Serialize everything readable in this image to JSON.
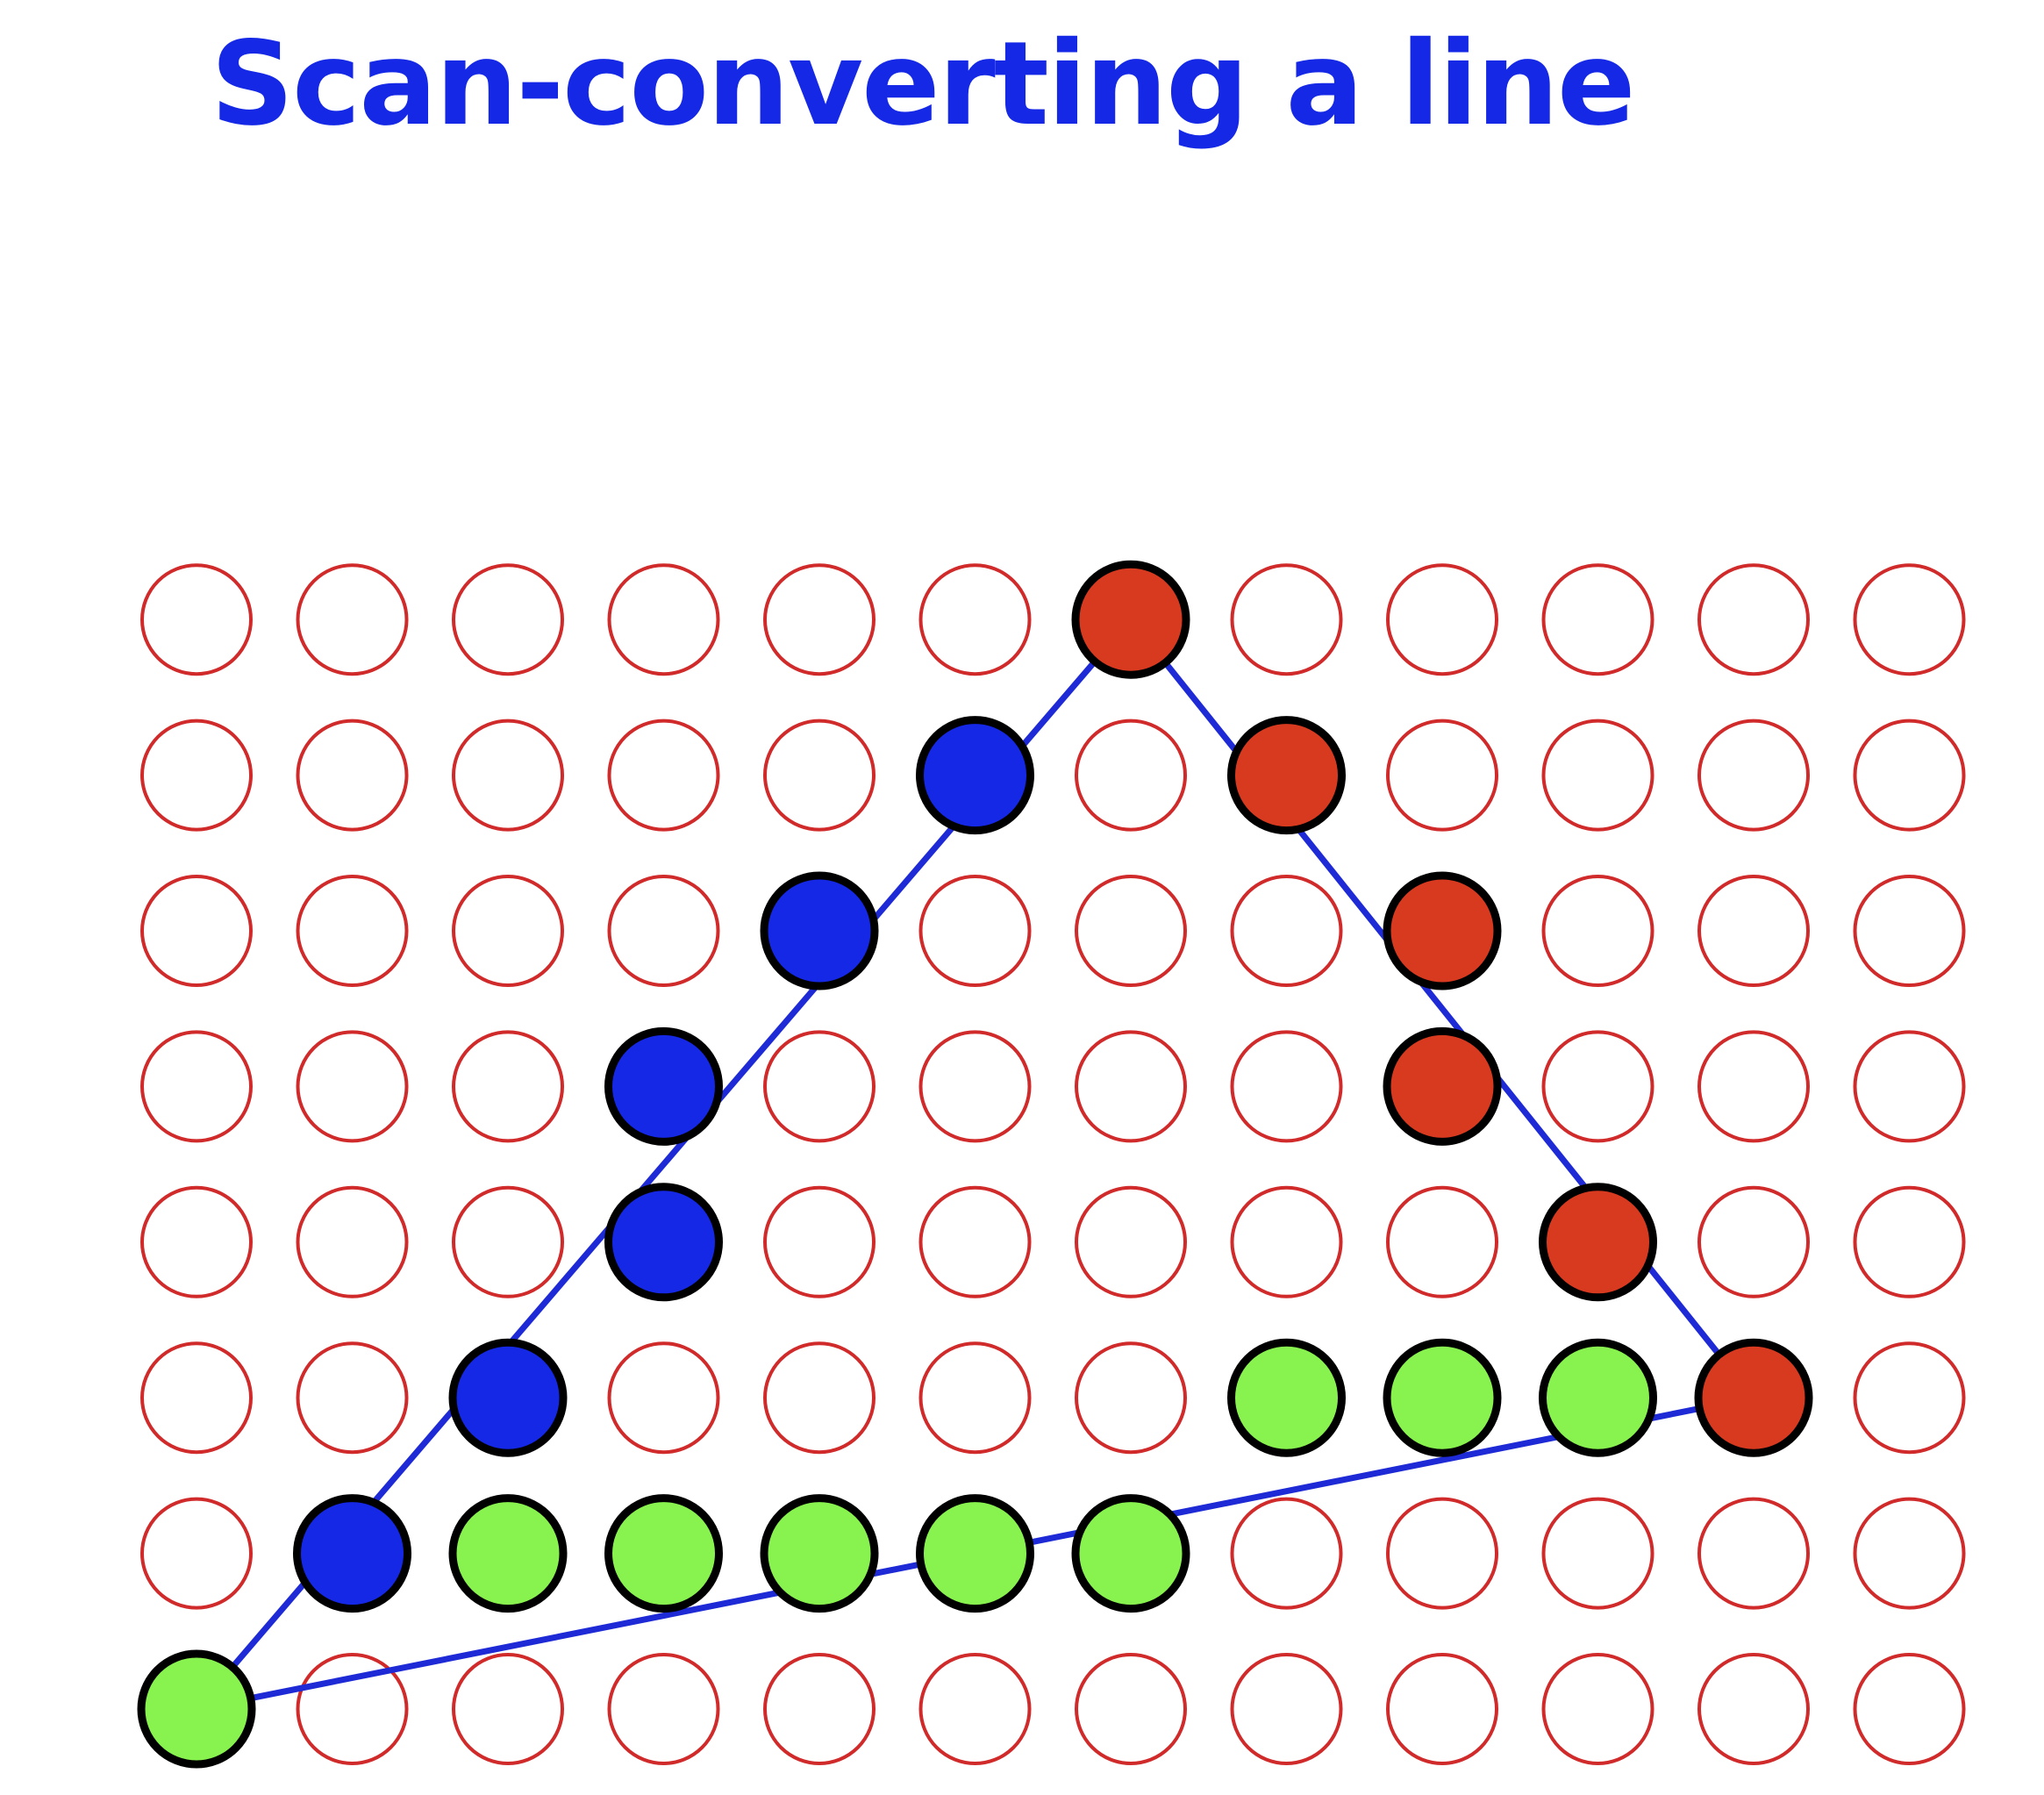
{
  "title": "Scan-converting a line",
  "colors": {
    "title": "#1428e6",
    "grid_outline": "#d02a2a",
    "line": "#1e2ad6",
    "left_edge_fill": "#1428e6",
    "right_edge_fill": "#d83a20",
    "bottom_edge_fill": "#88f24e",
    "filled_outline": "#000000"
  },
  "grid": {
    "columns": 12,
    "rows": 8
  },
  "lines": [
    {
      "name": "left-edge-line",
      "from": [
        0,
        0
      ],
      "to": [
        6,
        7
      ]
    },
    {
      "name": "right-edge-line",
      "from": [
        6,
        7
      ],
      "to": [
        10,
        2
      ]
    },
    {
      "name": "bottom-edge-line",
      "from": [
        0,
        0
      ],
      "to": [
        10,
        2
      ]
    }
  ],
  "filled_pixels": [
    {
      "edge": "right",
      "col": 6,
      "row": 7
    },
    {
      "edge": "left",
      "col": 5,
      "row": 6
    },
    {
      "edge": "right",
      "col": 7,
      "row": 6
    },
    {
      "edge": "left",
      "col": 4,
      "row": 5
    },
    {
      "edge": "right",
      "col": 8,
      "row": 5
    },
    {
      "edge": "left",
      "col": 3,
      "row": 4
    },
    {
      "edge": "right",
      "col": 8,
      "row": 4
    },
    {
      "edge": "left",
      "col": 3,
      "row": 3
    },
    {
      "edge": "right",
      "col": 9,
      "row": 3
    },
    {
      "edge": "left",
      "col": 2,
      "row": 2
    },
    {
      "edge": "bottom",
      "col": 7,
      "row": 2
    },
    {
      "edge": "bottom",
      "col": 8,
      "row": 2
    },
    {
      "edge": "bottom",
      "col": 9,
      "row": 2
    },
    {
      "edge": "right",
      "col": 10,
      "row": 2
    },
    {
      "edge": "left",
      "col": 1,
      "row": 1
    },
    {
      "edge": "bottom",
      "col": 2,
      "row": 1
    },
    {
      "edge": "bottom",
      "col": 3,
      "row": 1
    },
    {
      "edge": "bottom",
      "col": 4,
      "row": 1
    },
    {
      "edge": "bottom",
      "col": 5,
      "row": 1
    },
    {
      "edge": "bottom",
      "col": 6,
      "row": 1
    },
    {
      "edge": "bottom",
      "col": 0,
      "row": 0
    }
  ]
}
